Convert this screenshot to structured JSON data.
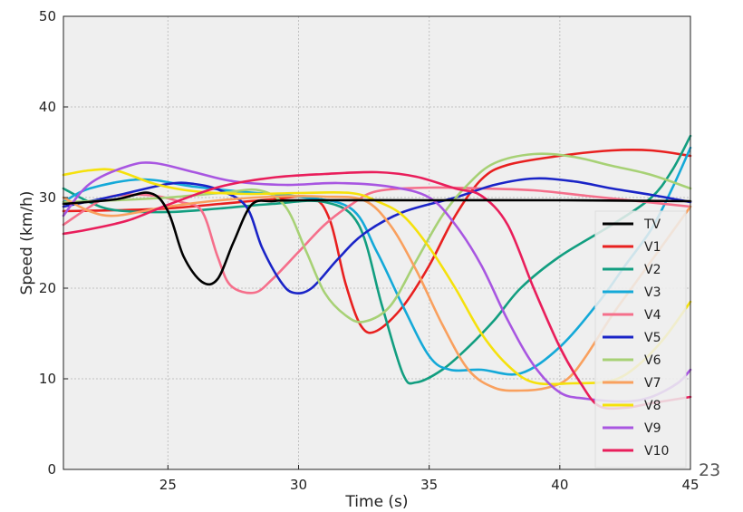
{
  "chart_data": {
    "type": "line",
    "xlabel": "Time (s)",
    "ylabel": "Speed (km/h)",
    "xlim": [
      21,
      45
    ],
    "ylim": [
      0,
      50
    ],
    "xticks": [
      25,
      30,
      35,
      40,
      45
    ],
    "yticks": [
      0,
      10,
      20,
      30,
      40,
      50
    ],
    "grid": true,
    "legend_position": "right",
    "series": [
      {
        "name": "TV",
        "color": "#000000",
        "points": [
          [
            21,
            29.3
          ],
          [
            23,
            29.8
          ],
          [
            24.3,
            30.5
          ],
          [
            25,
            28.5
          ],
          [
            25.6,
            23.5
          ],
          [
            26.3,
            20.7
          ],
          [
            26.9,
            21
          ],
          [
            27.5,
            25
          ],
          [
            28.2,
            29.2
          ],
          [
            29,
            29.6
          ],
          [
            30,
            29.7
          ],
          [
            35,
            29.7
          ],
          [
            40,
            29.7
          ],
          [
            45,
            29.6
          ]
        ]
      },
      {
        "name": "V1",
        "color": "#e8201f",
        "points": [
          [
            21,
            28.5
          ],
          [
            23,
            28.6
          ],
          [
            25,
            28.8
          ],
          [
            27,
            29.3
          ],
          [
            29,
            29.8
          ],
          [
            30.5,
            30
          ],
          [
            31.2,
            27.5
          ],
          [
            31.8,
            20.5
          ],
          [
            32.4,
            15.8
          ],
          [
            33,
            15.3
          ],
          [
            34,
            18
          ],
          [
            35,
            22.5
          ],
          [
            36,
            28
          ],
          [
            37,
            32
          ],
          [
            38,
            33.6
          ],
          [
            40,
            34.6
          ],
          [
            42,
            35.2
          ],
          [
            43.5,
            35.2
          ],
          [
            45,
            34.6
          ]
        ]
      },
      {
        "name": "V2",
        "color": "#129e80",
        "points": [
          [
            21,
            31
          ],
          [
            22,
            29.5
          ],
          [
            23,
            28.6
          ],
          [
            25,
            28.4
          ],
          [
            27,
            28.8
          ],
          [
            29,
            29.3
          ],
          [
            31,
            29.5
          ],
          [
            32.3,
            27
          ],
          [
            33.2,
            18
          ],
          [
            34,
            10.5
          ],
          [
            34.5,
            9.6
          ],
          [
            35.5,
            11
          ],
          [
            36.5,
            13.5
          ],
          [
            37.5,
            16.5
          ],
          [
            38.5,
            20
          ],
          [
            40,
            23.5
          ],
          [
            42,
            27
          ],
          [
            43.5,
            30
          ],
          [
            44.3,
            33
          ],
          [
            45,
            36.8
          ]
        ]
      },
      {
        "name": "V3",
        "color": "#14a9d8",
        "points": [
          [
            21,
            29.5
          ],
          [
            22,
            31
          ],
          [
            24,
            32
          ],
          [
            26,
            31.2
          ],
          [
            28,
            30.6
          ],
          [
            30,
            30.1
          ],
          [
            32,
            28.8
          ],
          [
            33,
            24
          ],
          [
            34,
            18
          ],
          [
            35,
            12.5
          ],
          [
            35.8,
            11
          ],
          [
            37,
            11
          ],
          [
            38.5,
            10.6
          ],
          [
            40,
            13.5
          ],
          [
            41.5,
            18.5
          ],
          [
            42.5,
            22.5
          ],
          [
            43.5,
            26.5
          ],
          [
            44.3,
            31
          ],
          [
            45,
            35.5
          ]
        ]
      },
      {
        "name": "V4",
        "color": "#f56f8b",
        "points": [
          [
            21,
            27
          ],
          [
            22.5,
            29.8
          ],
          [
            23.5,
            30.3
          ],
          [
            24.5,
            30.2
          ],
          [
            25.5,
            29.5
          ],
          [
            26.3,
            28.5
          ],
          [
            26.9,
            23.5
          ],
          [
            27.4,
            20.3
          ],
          [
            28.3,
            19.5
          ],
          [
            29,
            21
          ],
          [
            30,
            24
          ],
          [
            31,
            27
          ],
          [
            32,
            29.2
          ],
          [
            33,
            30.7
          ],
          [
            35,
            31.1
          ],
          [
            37,
            31
          ],
          [
            39,
            30.8
          ],
          [
            41,
            30.2
          ],
          [
            43,
            29.6
          ],
          [
            45,
            29
          ]
        ]
      },
      {
        "name": "V5",
        "color": "#1a24c7",
        "points": [
          [
            21,
            29
          ],
          [
            23,
            30.2
          ],
          [
            25,
            31.5
          ],
          [
            26,
            31.5
          ],
          [
            27,
            30.8
          ],
          [
            28,
            29
          ],
          [
            28.6,
            24.5
          ],
          [
            29.3,
            20.8
          ],
          [
            29.8,
            19.5
          ],
          [
            30.5,
            20
          ],
          [
            31.5,
            23.2
          ],
          [
            32.5,
            26
          ],
          [
            34,
            28.4
          ],
          [
            36,
            30
          ],
          [
            37.5,
            31.4
          ],
          [
            39,
            32.1
          ],
          [
            40.5,
            31.8
          ],
          [
            42,
            31
          ],
          [
            43.5,
            30.3
          ],
          [
            45,
            29.5
          ]
        ]
      },
      {
        "name": "V6",
        "color": "#a7d175",
        "points": [
          [
            21,
            29.5
          ],
          [
            23,
            29.7
          ],
          [
            25,
            30
          ],
          [
            27,
            30.5
          ],
          [
            28.5,
            30.8
          ],
          [
            29.5,
            29
          ],
          [
            30.3,
            24
          ],
          [
            31,
            19.5
          ],
          [
            31.8,
            17
          ],
          [
            32.5,
            16.3
          ],
          [
            33.5,
            18
          ],
          [
            34.5,
            23
          ],
          [
            35.5,
            28
          ],
          [
            36.5,
            31.5
          ],
          [
            37.5,
            33.8
          ],
          [
            39,
            34.8
          ],
          [
            40.5,
            34.5
          ],
          [
            42,
            33.5
          ],
          [
            43.5,
            32.5
          ],
          [
            45,
            31
          ]
        ]
      },
      {
        "name": "V7",
        "color": "#f9a05e",
        "points": [
          [
            21,
            30
          ],
          [
            22,
            28.5
          ],
          [
            23,
            28
          ],
          [
            25,
            29
          ],
          [
            27,
            29.7
          ],
          [
            29,
            30.1
          ],
          [
            31,
            30.1
          ],
          [
            32.5,
            29.7
          ],
          [
            33.5,
            27
          ],
          [
            34.5,
            22
          ],
          [
            35.5,
            16
          ],
          [
            36.5,
            11
          ],
          [
            37.5,
            9
          ],
          [
            38.5,
            8.7
          ],
          [
            39.5,
            9
          ],
          [
            40.3,
            10
          ],
          [
            41,
            12.5
          ],
          [
            42,
            17
          ],
          [
            43,
            21
          ],
          [
            44,
            25
          ],
          [
            45,
            29
          ]
        ]
      },
      {
        "name": "V8",
        "color": "#f5e10c",
        "points": [
          [
            21,
            32.5
          ],
          [
            22,
            33
          ],
          [
            23,
            33
          ],
          [
            24.5,
            31.5
          ],
          [
            26,
            30.7
          ],
          [
            28,
            30.4
          ],
          [
            30,
            30.5
          ],
          [
            32,
            30.5
          ],
          [
            33,
            29.6
          ],
          [
            34,
            28
          ],
          [
            35,
            24.5
          ],
          [
            36,
            20
          ],
          [
            37,
            15
          ],
          [
            38,
            11.5
          ],
          [
            39,
            9.6
          ],
          [
            40.5,
            9.5
          ],
          [
            42,
            9.8
          ],
          [
            43,
            11.5
          ],
          [
            44,
            14.5
          ],
          [
            45,
            18.5
          ]
        ]
      },
      {
        "name": "V9",
        "color": "#a856e1",
        "points": [
          [
            21,
            28
          ],
          [
            22,
            31.5
          ],
          [
            23.5,
            33.5
          ],
          [
            24.5,
            33.8
          ],
          [
            26,
            32.8
          ],
          [
            27.5,
            31.8
          ],
          [
            29.5,
            31.4
          ],
          [
            31.5,
            31.6
          ],
          [
            33.5,
            31.2
          ],
          [
            35,
            30
          ],
          [
            36,
            27
          ],
          [
            37,
            22.5
          ],
          [
            38,
            16.5
          ],
          [
            39,
            11.5
          ],
          [
            40,
            8.5
          ],
          [
            41,
            7.8
          ],
          [
            42.5,
            7.5
          ],
          [
            43.5,
            8
          ],
          [
            44.5,
            9.5
          ],
          [
            45,
            11
          ]
        ]
      },
      {
        "name": "V10",
        "color": "#e91e5b",
        "points": [
          [
            21,
            26
          ],
          [
            22,
            26.5
          ],
          [
            23.5,
            27.5
          ],
          [
            25,
            29.2
          ],
          [
            27,
            31.2
          ],
          [
            29,
            32.2
          ],
          [
            31,
            32.6
          ],
          [
            33,
            32.8
          ],
          [
            34.5,
            32.3
          ],
          [
            36,
            31
          ],
          [
            37,
            30.2
          ],
          [
            38,
            27
          ],
          [
            39,
            20
          ],
          [
            40,
            13.5
          ],
          [
            40.8,
            9.5
          ],
          [
            41.5,
            7
          ],
          [
            42.5,
            6.8
          ],
          [
            43.5,
            7.3
          ],
          [
            45,
            8
          ]
        ]
      }
    ]
  },
  "page": {
    "number": "23"
  }
}
